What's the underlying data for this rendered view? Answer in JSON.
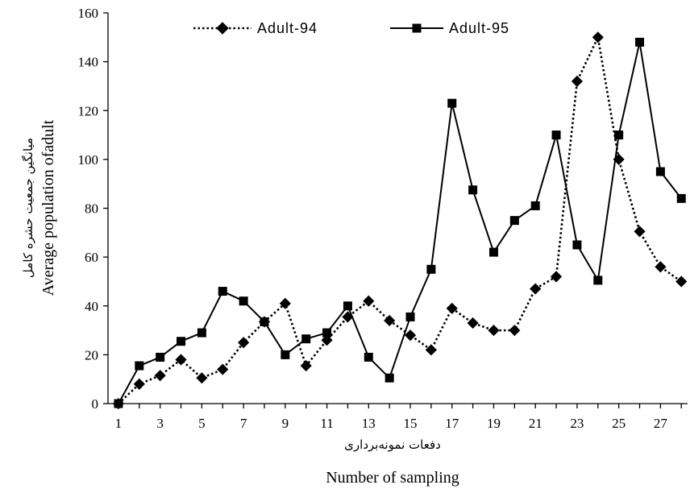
{
  "chart_data": {
    "type": "line",
    "x": [
      1,
      2,
      3,
      4,
      5,
      6,
      7,
      8,
      9,
      10,
      11,
      12,
      13,
      14,
      15,
      16,
      17,
      18,
      19,
      20,
      21,
      22,
      23,
      24,
      25,
      26,
      27,
      28
    ],
    "xticks": [
      1,
      3,
      5,
      7,
      9,
      11,
      13,
      15,
      17,
      19,
      21,
      23,
      25,
      27
    ],
    "xlim": [
      0.5,
      28.3
    ],
    "ylim": [
      0,
      160
    ],
    "yticks": [
      0,
      20,
      40,
      60,
      80,
      100,
      120,
      140,
      160
    ],
    "xlabel": "Number of sampling",
    "xlabel_fa": "دفعات نمونه‌برداری",
    "ylabel": "Average population ofadult",
    "ylabel_fa": "میانگین جمعیت حشره کامل",
    "legend_position": "top",
    "series": [
      {
        "name": "Adult-94",
        "style": "dotted",
        "marker": "diamond",
        "color": "#000000",
        "values": [
          0,
          8,
          11.5,
          18,
          10.5,
          14,
          25,
          33.5,
          41,
          15.5,
          26,
          35.5,
          42,
          34,
          28,
          22,
          39,
          33,
          30,
          30,
          47,
          52,
          132,
          150,
          100,
          70.5,
          56,
          50
        ]
      },
      {
        "name": "Adult-95",
        "style": "solid",
        "marker": "square",
        "color": "#000000",
        "values": [
          0,
          15.5,
          19,
          25.5,
          29,
          46,
          42,
          33.5,
          20,
          26.5,
          29,
          40,
          19,
          10.5,
          35.5,
          55,
          123,
          87.5,
          62,
          75,
          81,
          110,
          65,
          50.5,
          110,
          148,
          95,
          84
        ]
      }
    ]
  }
}
